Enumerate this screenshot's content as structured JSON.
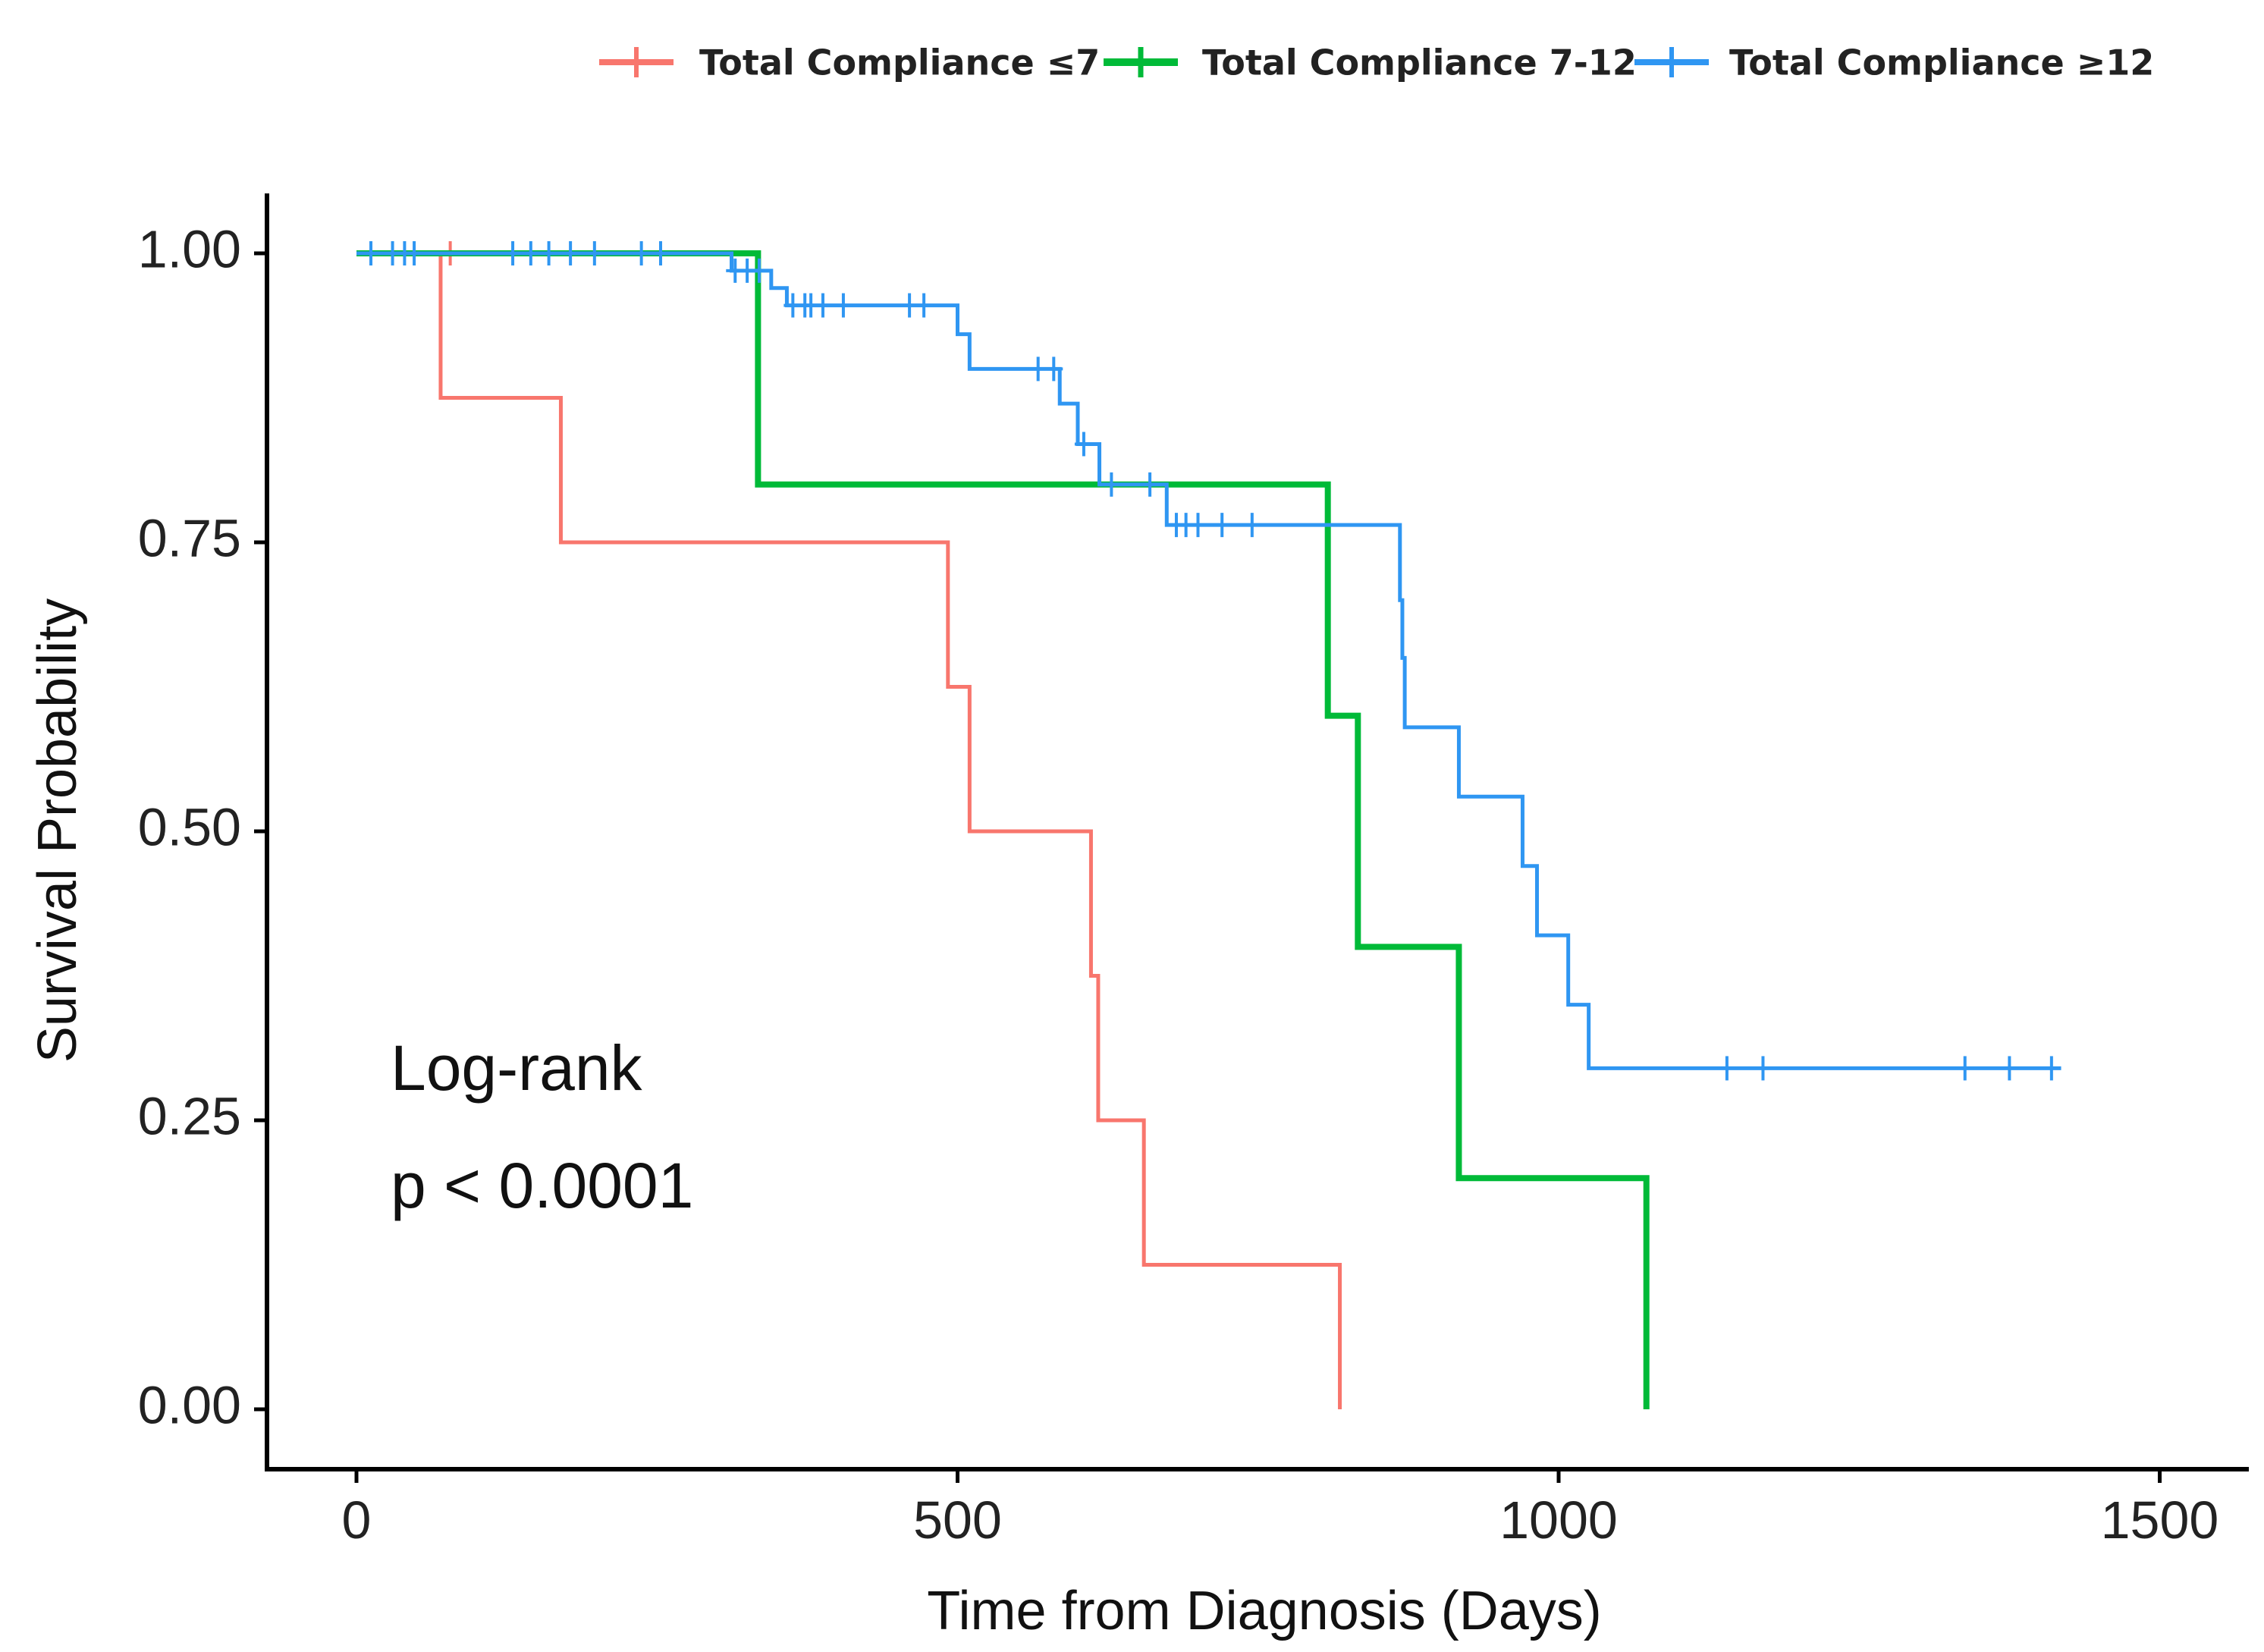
{
  "chart_data": {
    "type": "line",
    "subtype": "kaplan-meier",
    "title": "",
    "xlabel": "Time from Diagnosis (Days)",
    "ylabel": "Survival Probability",
    "xlim": [
      -75,
      1575
    ],
    "ylim": [
      -0.05,
      1.05
    ],
    "xticks": [
      0,
      500,
      1000,
      1500
    ],
    "xtick_labels": [
      "0",
      "500",
      "1000",
      "1500"
    ],
    "yticks": [
      0,
      0.25,
      0.5,
      0.75,
      1.0
    ],
    "ytick_labels": [
      "0.00",
      "0.25",
      "0.50",
      "0.75",
      "1.00"
    ],
    "grid": false,
    "legend_position": "top",
    "annotations": [
      "Log-rank",
      "p < 0.0001"
    ],
    "series": [
      {
        "name": "Total Compliance ≤7",
        "color": "#F8766D",
        "steps": [
          [
            0,
            1.0
          ],
          [
            70,
            0.875
          ],
          [
            170,
            0.75
          ],
          [
            492,
            0.625
          ],
          [
            510,
            0.5
          ],
          [
            611,
            0.375
          ],
          [
            617,
            0.25
          ],
          [
            655,
            0.125
          ],
          [
            818,
            0.0
          ]
        ],
        "end": 818,
        "censored": [
          [
            78,
            1.0
          ]
        ]
      },
      {
        "name": "Total Compliance 7-12",
        "color": "#00BA38",
        "steps": [
          [
            0,
            1.0
          ],
          [
            334,
            0.8
          ],
          [
            808,
            0.6
          ],
          [
            833,
            0.4
          ],
          [
            917,
            0.2
          ],
          [
            1073,
            0.0
          ]
        ],
        "end": 1073,
        "censored": []
      },
      {
        "name": "Total Compliance ≥12",
        "color": "#2F96F2",
        "steps": [
          [
            0,
            1.0
          ],
          [
            312,
            0.985
          ],
          [
            345,
            0.97
          ],
          [
            358,
            0.955
          ],
          [
            500,
            0.93
          ],
          [
            510,
            0.9
          ],
          [
            585,
            0.87
          ],
          [
            600,
            0.835
          ],
          [
            618,
            0.8
          ],
          [
            674,
            0.765
          ],
          [
            868,
            0.7
          ],
          [
            870,
            0.65
          ],
          [
            872,
            0.59
          ],
          [
            917,
            0.53
          ],
          [
            970,
            0.47
          ],
          [
            982,
            0.41
          ],
          [
            1008,
            0.35
          ],
          [
            1025,
            0.295
          ]
        ],
        "end": 1418,
        "censored": [
          [
            12,
            1.0
          ],
          [
            30,
            1.0
          ],
          [
            40,
            1.0
          ],
          [
            48,
            1.0
          ],
          [
            130,
            1.0
          ],
          [
            145,
            1.0
          ],
          [
            160,
            1.0
          ],
          [
            178,
            1.0
          ],
          [
            198,
            1.0
          ],
          [
            237,
            1.0
          ],
          [
            253,
            1.0
          ],
          [
            315,
            0.985
          ],
          [
            325,
            0.985
          ],
          [
            335,
            0.985
          ],
          [
            363,
            0.955
          ],
          [
            373,
            0.955
          ],
          [
            378,
            0.955
          ],
          [
            388,
            0.955
          ],
          [
            405,
            0.955
          ],
          [
            460,
            0.955
          ],
          [
            472,
            0.955
          ],
          [
            567,
            0.9
          ],
          [
            580,
            0.9
          ],
          [
            605,
            0.835
          ],
          [
            628,
            0.8
          ],
          [
            660,
            0.8
          ],
          [
            682,
            0.765
          ],
          [
            690,
            0.765
          ],
          [
            700,
            0.765
          ],
          [
            720,
            0.765
          ],
          [
            745,
            0.765
          ],
          [
            1140,
            0.295
          ],
          [
            1170,
            0.295
          ],
          [
            1338,
            0.295
          ],
          [
            1375,
            0.295
          ],
          [
            1410,
            0.295
          ]
        ]
      }
    ]
  }
}
